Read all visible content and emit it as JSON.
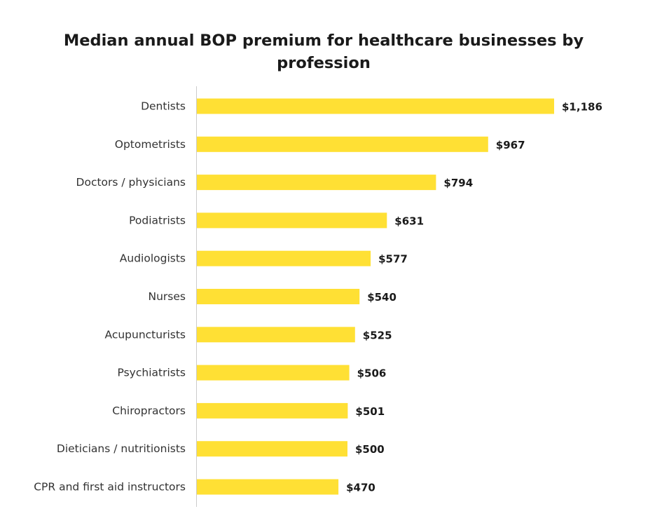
{
  "chart_data": {
    "type": "bar",
    "orientation": "horizontal",
    "title": "Median annual BOP premium for healthcare businesses by profession",
    "categories": [
      "Dentists",
      "Optometrists",
      "Doctors / physicians",
      "Podiatrists",
      "Audiologists",
      "Nurses",
      "Acupuncturists",
      "Psychiatrists",
      "Chiropractors",
      "Dieticians / nutritionists",
      "CPR and first aid instructors"
    ],
    "values": [
      1186,
      967,
      794,
      631,
      577,
      540,
      525,
      506,
      501,
      500,
      470
    ],
    "value_labels": [
      "$1,186",
      "$967",
      "$794",
      "$631",
      "$577",
      "$540",
      "$525",
      "$506",
      "$501",
      "$500",
      "$470"
    ],
    "xlim": [
      0,
      1186
    ],
    "grid": false,
    "legend": "none",
    "bar_color": "#FFE034",
    "axis_color": "#cccccc"
  }
}
